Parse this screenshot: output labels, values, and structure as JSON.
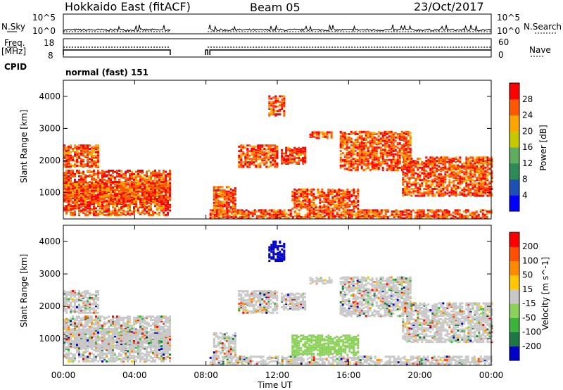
{
  "header": {
    "title": "Hokkaido East (fitACF)",
    "beam": "Beam 05",
    "date": "23/Oct/2017"
  },
  "strip_panels": {
    "nsky_label": "N.Sky",
    "nsky_ticks": [
      "10^5",
      "10^0"
    ],
    "nsearch_label": "N.Search",
    "nsearch_ticks": [
      "10^5",
      "10^0"
    ],
    "freq_label_1": "Freq.",
    "freq_label_2": "[MHz]",
    "freq_ticks": [
      "18",
      "8"
    ],
    "nave_label": "Nave",
    "nave_ticks": [
      "60",
      "0"
    ],
    "cpid_label": "CPID",
    "cpid_value": "normal (fast) 151"
  },
  "chart_data": [
    {
      "type": "heatmap",
      "name": "Power",
      "ylabel": "Slant Range [km]",
      "yticks": [
        "4000",
        "3000",
        "2000",
        "1000"
      ],
      "ylim": [
        180,
        4500
      ],
      "colorbar_label": "Power [dB]",
      "colorbar_ticks": [
        "28",
        "24",
        "20",
        "16",
        "12",
        "8",
        "4"
      ],
      "colorscale": [
        "#0000ff",
        "#1e50b4",
        "#2e8b57",
        "#5fae5f",
        "#c8c800",
        "#ffa500",
        "#ff5a00",
        "#ff0000"
      ],
      "data_gap_ut": [
        6.0,
        8.1
      ]
    },
    {
      "type": "heatmap",
      "name": "Velocity",
      "ylabel": "Slant Range [km]",
      "yticks": [
        "4000",
        "3000",
        "2000",
        "1000"
      ],
      "ylim": [
        180,
        4500
      ],
      "colorbar_label": "Velocity [m s^-1]",
      "colorbar_ticks": [
        "200",
        "100",
        "50",
        "15",
        "-15",
        "-50",
        "-100",
        "-200"
      ],
      "colorscale": [
        "#0000c8",
        "#1e7846",
        "#3cb43c",
        "#8cd25a",
        "#c8c8c8",
        "#ffc800",
        "#ff8c00",
        "#ff5000",
        "#ff0000"
      ],
      "data_gap_ut": [
        6.0,
        8.1
      ]
    }
  ],
  "xaxis": {
    "label": "Time UT",
    "ticks": [
      "00:00",
      "04:00",
      "08:00",
      "12:00",
      "16:00",
      "20:00",
      "00:00"
    ]
  }
}
